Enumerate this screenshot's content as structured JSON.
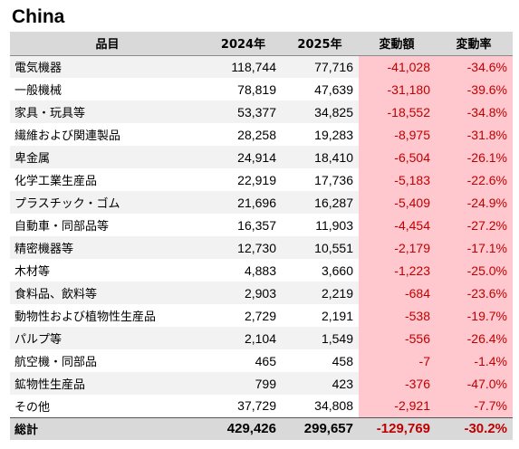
{
  "title": "China",
  "chart_data": {
    "type": "table",
    "columns": [
      "品目",
      "2024年",
      "2025年",
      "変動額",
      "変動率"
    ],
    "rows": [
      {
        "item": "電気機器",
        "y2024": "118,744",
        "y2025": "77,716",
        "change": "-41,028",
        "rate": "-34.6%"
      },
      {
        "item": "一般機械",
        "y2024": "78,819",
        "y2025": "47,639",
        "change": "-31,180",
        "rate": "-39.6%"
      },
      {
        "item": "家具・玩具等",
        "y2024": "53,377",
        "y2025": "34,825",
        "change": "-18,552",
        "rate": "-34.8%"
      },
      {
        "item": "繊維および関連製品",
        "y2024": "28,258",
        "y2025": "19,283",
        "change": "-8,975",
        "rate": "-31.8%"
      },
      {
        "item": "卑金属",
        "y2024": "24,914",
        "y2025": "18,410",
        "change": "-6,504",
        "rate": "-26.1%"
      },
      {
        "item": "化学工業生産品",
        "y2024": "22,919",
        "y2025": "17,736",
        "change": "-5,183",
        "rate": "-22.6%"
      },
      {
        "item": "プラスチック・ゴム",
        "y2024": "21,696",
        "y2025": "16,287",
        "change": "-5,409",
        "rate": "-24.9%"
      },
      {
        "item": "自動車・同部品等",
        "y2024": "16,357",
        "y2025": "11,903",
        "change": "-4,454",
        "rate": "-27.2%"
      },
      {
        "item": "精密機器等",
        "y2024": "12,730",
        "y2025": "10,551",
        "change": "-2,179",
        "rate": "-17.1%"
      },
      {
        "item": "木材等",
        "y2024": "4,883",
        "y2025": "3,660",
        "change": "-1,223",
        "rate": "-25.0%"
      },
      {
        "item": "食料品、飲料等",
        "y2024": "2,903",
        "y2025": "2,219",
        "change": "-684",
        "rate": "-23.6%"
      },
      {
        "item": "動物性および植物性生産品",
        "y2024": "2,729",
        "y2025": "2,191",
        "change": "-538",
        "rate": "-19.7%"
      },
      {
        "item": "パルプ等",
        "y2024": "2,104",
        "y2025": "1,549",
        "change": "-556",
        "rate": "-26.4%"
      },
      {
        "item": "航空機・同部品",
        "y2024": "465",
        "y2025": "458",
        "change": "-7",
        "rate": "-1.4%"
      },
      {
        "item": "鉱物性生産品",
        "y2024": "799",
        "y2025": "423",
        "change": "-376",
        "rate": "-47.0%"
      },
      {
        "item": "その他",
        "y2024": "37,729",
        "y2025": "34,808",
        "change": "-2,921",
        "rate": "-7.7%"
      }
    ],
    "total": {
      "item": "総計",
      "y2024": "429,426",
      "y2025": "299,657",
      "change": "-129,769",
      "rate": "-30.2%"
    }
  },
  "colors": {
    "header_bg": "#d9d9d9",
    "negative_cell_bg": "#ffc7ce",
    "negative_text": "#c00000",
    "band_light": "#f2f2f2"
  }
}
